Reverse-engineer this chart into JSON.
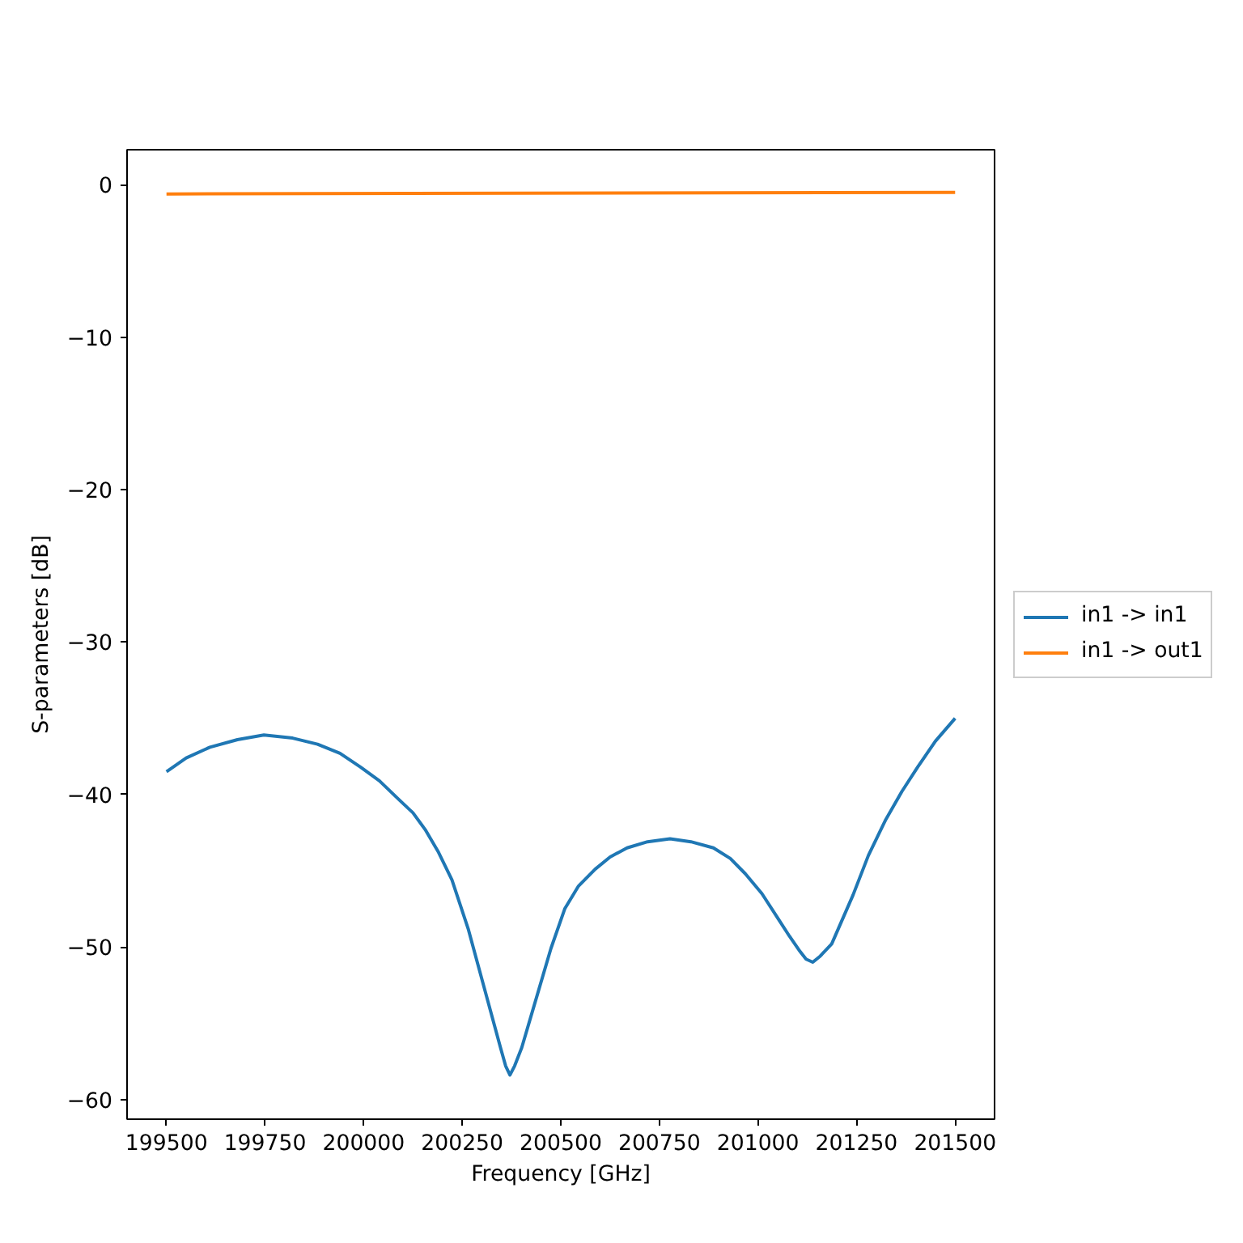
{
  "chart_data": {
    "type": "line",
    "xlabel": "Frequency [GHz]",
    "ylabel": "S-parameters [dB]",
    "series": [
      {
        "name": "in1 -> in1",
        "color": "#1f77b4",
        "x": [
          199500,
          199550,
          199610,
          199680,
          199747,
          199820,
          199883,
          199940,
          199992,
          200040,
          200088,
          200125,
          200156,
          200190,
          200224,
          200265,
          200306,
          200347,
          200360,
          200371,
          200383,
          200401,
          200442,
          200475,
          200510,
          200545,
          200587,
          200625,
          200668,
          200720,
          200777,
          200830,
          200887,
          200930,
          200968,
          201010,
          201050,
          201080,
          201104,
          201122,
          201139,
          201158,
          201187,
          201241,
          201280,
          201323,
          201365,
          201405,
          201450,
          201500
        ],
        "values": [
          -38.5,
          -37.6,
          -36.9,
          -36.4,
          -36.1,
          -36.3,
          -36.7,
          -37.3,
          -38.2,
          -39.1,
          -40.3,
          -41.2,
          -42.3,
          -43.8,
          -45.6,
          -48.8,
          -52.7,
          -56.6,
          -57.8,
          -58.4,
          -57.8,
          -56.6,
          -53.0,
          -50.1,
          -47.5,
          -46.0,
          -44.9,
          -44.1,
          -43.5,
          -43.1,
          -42.9,
          -43.1,
          -43.5,
          -44.2,
          -45.2,
          -46.5,
          -48.1,
          -49.3,
          -50.2,
          -50.8,
          -51.0,
          -50.6,
          -49.8,
          -46.6,
          -44.0,
          -41.7,
          -39.8,
          -38.2,
          -36.5,
          -35.0
        ]
      },
      {
        "name": "in1 -> out1",
        "color": "#ff7f0e",
        "x": [
          199500,
          201500
        ],
        "values": [
          -0.6,
          -0.5
        ]
      }
    ],
    "xlim": [
      199400,
      201600
    ],
    "ylim": [
      -61.3,
      2.3
    ],
    "xticks": [
      199500,
      199750,
      200000,
      200250,
      200500,
      200750,
      201000,
      201250,
      201500
    ],
    "yticks": [
      0,
      {
        "value": -10,
        "label": "−10"
      },
      {
        "value": -20,
        "label": "−20"
      },
      {
        "value": -30,
        "label": "−30"
      },
      {
        "value": -40,
        "label": "−40"
      },
      {
        "value": -50,
        "label": "−50"
      },
      {
        "value": -60,
        "label": "−60"
      }
    ],
    "legend": "right",
    "line_style": "solid"
  }
}
